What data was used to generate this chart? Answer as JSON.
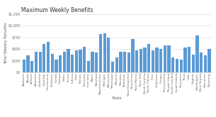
{
  "title": "Maximum Weekly Benefits",
  "xlabel": "State",
  "ylabel": "Total Weekly Benefits",
  "ylim": [
    0,
    1250
  ],
  "yticks": [
    0,
    250,
    500,
    750,
    1000,
    1250
  ],
  "bar_color": "#5B9BD5",
  "background_color": "#ffffff",
  "states": [
    "Alabama",
    "Alaska",
    "Arizona",
    "Arkansas",
    "California",
    "Colorado",
    "Connecticut",
    "Delaware",
    "Florida",
    "Georgia",
    "Idaho",
    "Illinois",
    "Indiana",
    "Iowa",
    "Kansas",
    "Kentucky",
    "Louisiana",
    "Maine",
    "Maryland",
    "Massachusetts",
    "Michigan",
    "Minnesota",
    "Mississippi",
    "Missouri",
    "Montana",
    "Nebraska",
    "New Hampshire",
    "New Jersey",
    "New Mexico",
    "New York",
    "North Carolina",
    "North Dakota",
    "Ohio",
    "Oklahoma",
    "Oregon",
    "Pennsylvania",
    "Rhode Island",
    "South Carolina",
    "South Dakota",
    "Tennessee",
    "Texas",
    "Utah",
    "Virginia",
    "Washington",
    "West Virginia",
    "Wisconsin",
    "Wyoming"
  ],
  "values": [
    275,
    370,
    240,
    451,
    450,
    618,
    649,
    400,
    275,
    365,
    448,
    505,
    390,
    475,
    488,
    552,
    247,
    445,
    430,
    823,
    840,
    740,
    235,
    320,
    448,
    440,
    427,
    713,
    475,
    504,
    535,
    618,
    480,
    540,
    507,
    573,
    586,
    326,
    295,
    275,
    535,
    549,
    378,
    790,
    424,
    370,
    508
  ],
  "title_fontsize": 5.5,
  "axis_label_fontsize": 4,
  "tick_fontsize": 3,
  "ytick_fontsize": 3.5
}
